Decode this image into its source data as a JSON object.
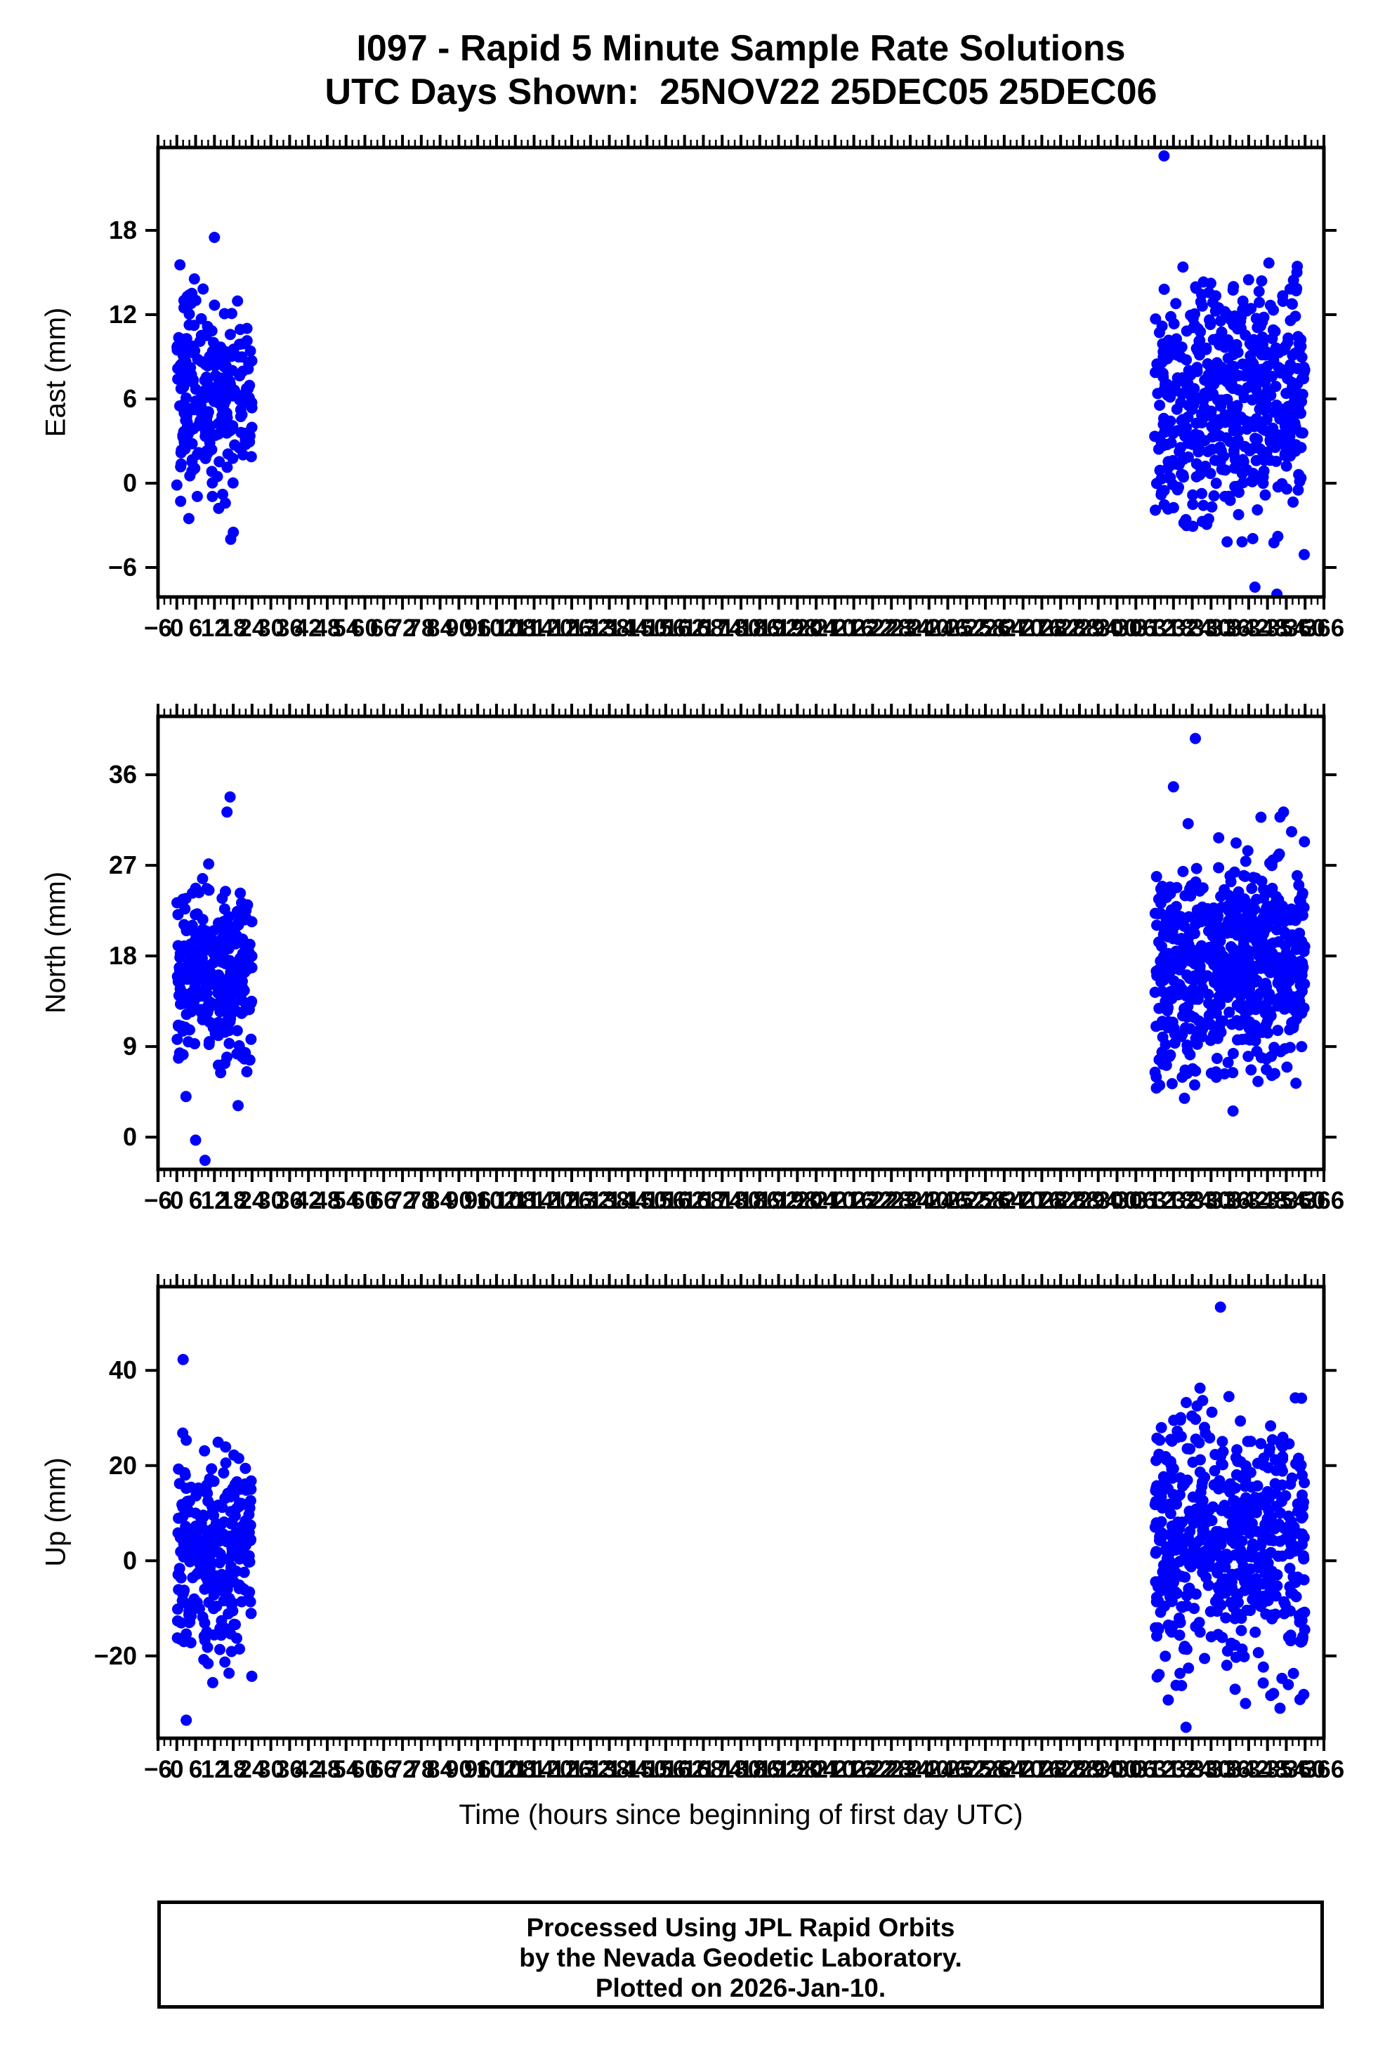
{
  "page_title": {
    "line1": "I097 - Rapid 5 Minute Sample Rate Solutions",
    "line2": "UTC Days Shown:  25NOV22 25DEC05 25DEC06"
  },
  "station_id": "I097",
  "utc_days_shown": [
    "25NOV22",
    "25DEC05",
    "25DEC06"
  ],
  "x_axis": {
    "title": "Time (hours since beginning of first day UTC)",
    "min": -6,
    "max": 366,
    "major_tick_step": 6,
    "minor_tick_step": 2,
    "tick_values": [
      -6,
      0,
      6,
      12,
      18,
      24,
      30,
      36,
      42,
      48,
      54,
      60,
      66,
      72,
      78,
      84,
      90,
      96,
      102,
      108,
      114,
      120,
      126,
      132,
      138,
      144,
      150,
      156,
      162,
      168,
      174,
      180,
      186,
      192,
      198,
      204,
      210,
      216,
      222,
      228,
      234,
      240,
      246,
      252,
      258,
      264,
      270,
      276,
      282,
      288,
      294,
      300,
      306,
      312,
      318,
      324,
      330,
      336,
      342,
      348,
      354,
      360,
      366
    ]
  },
  "footer": {
    "line1": "Processed Using JPL Rapid Orbits",
    "line2": "by the Nevada Geodetic Laboratory.",
    "line3": "Plotted on 2026-Jan-10."
  },
  "style": {
    "point_color": "#0000ff",
    "axis_color": "#000000",
    "background": "#ffffff",
    "point_radius": 8
  },
  "chart_data": [
    {
      "type": "scatter",
      "ylabel": "East (mm)",
      "ylim": [
        -8.1,
        23.9
      ],
      "yticks": [
        -6,
        0,
        6,
        12,
        18
      ],
      "xlim": [
        -6,
        366
      ],
      "legend": null,
      "grid": false,
      "seed": 11,
      "clusters": [
        {
          "x_range": [
            0,
            24
          ],
          "n": 270,
          "mean": 6.3,
          "sd": 3.3,
          "clip": [
            -4.3,
            15.6
          ]
        },
        {
          "x_range": [
            312,
            360
          ],
          "n": 540,
          "mean": 5.8,
          "sd": 4.3,
          "clip": [
            -7.2,
            16.8
          ]
        }
      ],
      "outliers": [
        [
          315,
          23.3
        ],
        [
          12,
          17.5
        ],
        [
          344,
          -7.4
        ],
        [
          351,
          -7.9
        ]
      ]
    },
    {
      "type": "scatter",
      "ylabel": "North (mm)",
      "ylim": [
        -3.2,
        41.8
      ],
      "yticks": [
        0,
        9,
        18,
        27,
        36
      ],
      "xlim": [
        -6,
        366
      ],
      "legend": null,
      "grid": false,
      "seed": 22,
      "clusters": [
        {
          "x_range": [
            0,
            24
          ],
          "n": 300,
          "mean": 16.5,
          "sd": 4.0,
          "clip": [
            2.5,
            29.8
          ]
        },
        {
          "x_range": [
            312,
            360
          ],
          "n": 620,
          "mean": 16.8,
          "sd": 5.2,
          "clip": [
            3.8,
            33.5
          ]
        }
      ],
      "outliers": [
        [
          17,
          33.8
        ],
        [
          16,
          32.3
        ],
        [
          6,
          -0.3
        ],
        [
          9,
          -2.3
        ],
        [
          325,
          39.6
        ],
        [
          318,
          34.8
        ],
        [
          352,
          31.8
        ],
        [
          337,
          2.6
        ]
      ]
    },
    {
      "type": "scatter",
      "ylabel": "Up (mm)",
      "ylim": [
        -37.3,
        57.6
      ],
      "yticks": [
        -20,
        0,
        20,
        40
      ],
      "xlim": [
        -6,
        366
      ],
      "legend": null,
      "grid": false,
      "seed": 33,
      "clusters": [
        {
          "x_range": [
            0,
            24
          ],
          "n": 280,
          "mean": 0.0,
          "sd": 11.0,
          "clip": [
            -26.0,
            31.5
          ]
        },
        {
          "x_range": [
            312,
            360
          ],
          "n": 560,
          "mean": 3.5,
          "sd": 13.0,
          "clip": [
            -31.0,
            38.5
          ]
        }
      ],
      "outliers": [
        [
          2,
          42.3
        ],
        [
          3,
          -33.5
        ],
        [
          333,
          53.3
        ],
        [
          322,
          -35.0
        ],
        [
          352,
          -31.0
        ],
        [
          341,
          -30.0
        ]
      ]
    }
  ]
}
